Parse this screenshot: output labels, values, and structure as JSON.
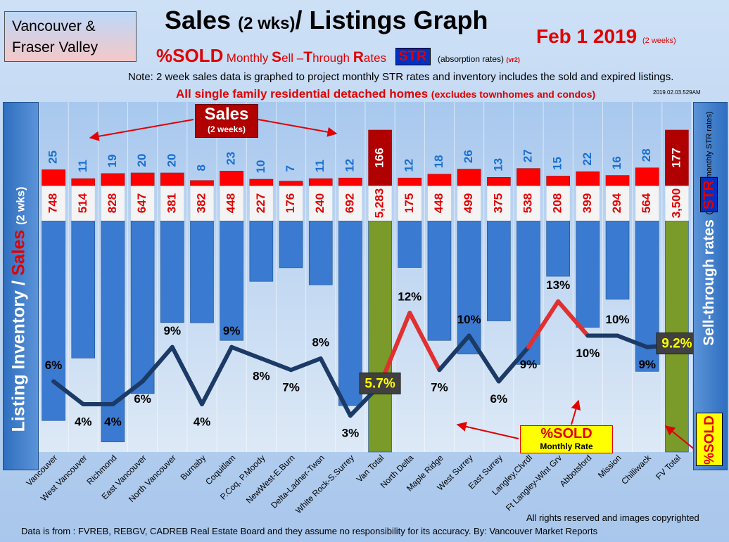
{
  "region": {
    "line1": "Vancouver &",
    "line2": "Fraser Valley"
  },
  "header": {
    "title_main": "Sales",
    "title_sub": "(2 wks)",
    "title_rest": "/ Listings Graph",
    "date": "Feb  1  2019",
    "date_note": "(2 weeks)",
    "sold_label": "%SOLD",
    "str_m": "Monthly ",
    "str_s": "S",
    "str_ell": "ell –",
    "str_t": "T",
    "str_hrough": "hrough ",
    "str_r": "R",
    "str_ates": "ates",
    "str_badge": "STR",
    "absorption": "(absorption rates)",
    "version": "(vr2)",
    "note": "Note: 2 week sales data is graphed to project monthly STR rates and inventory includes the sold and expired listings.",
    "scope": "All single family residential detached homes",
    "scope_note": "(excludes townhomes and condos)",
    "stamp": "2019.02.03.529AM"
  },
  "left_axis": {
    "part1": "Listing Inventory",
    "slash": "/",
    "part2": "Sales",
    "part3": "(2  wks)"
  },
  "right_axis": {
    "top": "(projected monthly STR rates)",
    "main": "Sell-through rates",
    "badge": "STR"
  },
  "sales_callout": {
    "big": "Sales",
    "small": "(2 weeks)"
  },
  "sold_callout": {
    "big": "%SOLD",
    "small": "Monthly Rate"
  },
  "sold_vertical": "%SOLD",
  "footer": {
    "rights": "All rights reserved and  images copyrighted",
    "source": "Data is from : FVREB, REBGV, CADREB Real Estate Board and they assume no responsibility for its accuracy. By: Vancouver Market Reports"
  },
  "chart_data": {
    "type": "bar",
    "categories": [
      "Vancouver",
      "West Vancouver",
      "Richmond",
      "East Vancouver",
      "North Vancouver",
      "Burnaby",
      "Coquitlam",
      "P.Coq, P.Moody",
      "NewWest-E.Burn",
      "Delta-Ladner-Twsn",
      "White Rock-S.Surrey",
      "Van Total",
      "North Delta",
      "Maple Ridge",
      "West Surrey",
      "East Surrey",
      "Langley,Clvrdl",
      "Ft Langley-Wlnt Grv",
      "Abbotsford",
      "Mission",
      "Chilliwack",
      "FV Total"
    ],
    "series": [
      {
        "name": "Sales",
        "values": [
          25,
          11,
          19,
          20,
          20,
          8,
          23,
          10,
          7,
          11,
          12,
          166,
          12,
          18,
          26,
          13,
          27,
          15,
          22,
          16,
          28,
          177
        ]
      },
      {
        "name": "Listing Inventory",
        "values": [
          748,
          514,
          828,
          647,
          381,
          382,
          448,
          227,
          176,
          240,
          692,
          5283,
          175,
          448,
          499,
          375,
          538,
          208,
          399,
          294,
          564,
          3500
        ]
      },
      {
        "name": "%SOLD",
        "values": [
          6,
          4,
          4,
          6,
          9,
          4,
          9,
          8,
          7,
          8,
          3,
          5.7,
          12,
          7,
          10,
          6,
          9,
          13,
          10,
          10,
          9,
          9.2
        ]
      }
    ],
    "inventory_labels": [
      "748",
      "514",
      "828",
      "647",
      "381",
      "382",
      "448",
      "227",
      "176",
      "240",
      "692",
      "5,283",
      "175",
      "448",
      "499",
      "375",
      "538",
      "208",
      "399",
      "294",
      "564",
      "3,500"
    ],
    "sold_labels": [
      "6%",
      "4%",
      "4%",
      "6%",
      "9%",
      "4%",
      "9%",
      "8%",
      "7%",
      "8%",
      "3%",
      "5.7%",
      "12%",
      "7%",
      "10%",
      "6%",
      "9%",
      "13%",
      "10%",
      "10%",
      "9%",
      "9.2%"
    ],
    "totals_index": [
      11,
      21
    ],
    "colors": {
      "sales": "#ff0000",
      "inventory": "#3a7ad0",
      "total": "#7a9a2a",
      "total_sales": "#b00000",
      "line": "#1b3a66",
      "line_high": "#e03030",
      "sales_text": "#1a6fd0",
      "inventory_text": "#e00000"
    }
  }
}
